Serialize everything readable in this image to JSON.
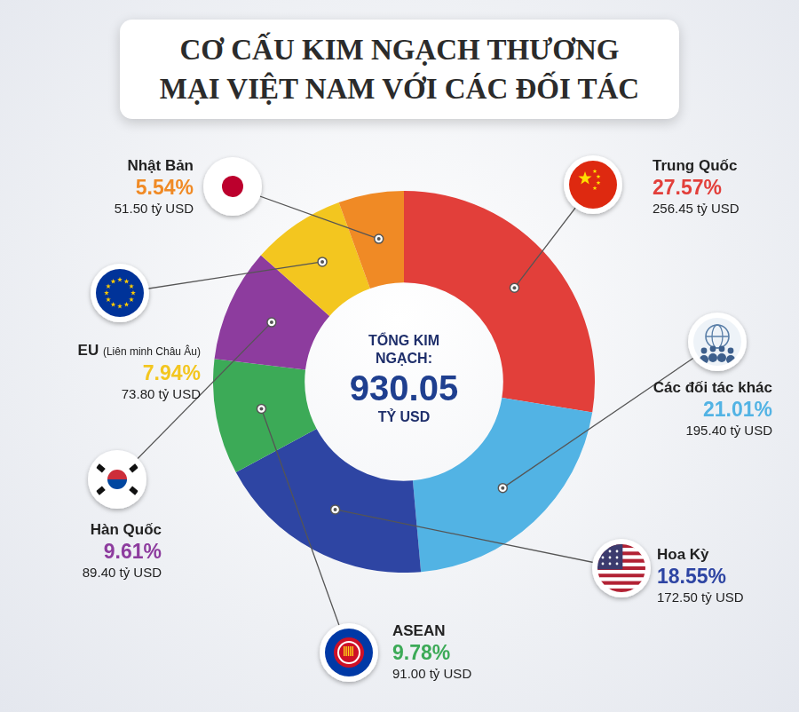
{
  "chart_data": {
    "type": "doughnut",
    "title": "CƠ CẤU KIM NGẠCH THƯƠNG MẠI VIỆT NAM VỚI CÁC ĐỐI TÁC",
    "categories": [
      "Trung Quốc",
      "Các đối tác khác",
      "Hoa Kỳ",
      "ASEAN",
      "Hàn Quốc",
      "EU (Liên minh Châu Âu)",
      "Nhật Bản"
    ],
    "values": [
      27.57,
      21.01,
      18.55,
      9.78,
      9.61,
      7.94,
      5.54
    ],
    "value_labels": [
      "27.57%",
      "21.01%",
      "18.55%",
      "9.78%",
      "9.61%",
      "7.94%",
      "5.54%"
    ],
    "amount_labels": [
      "256.45 tỷ USD",
      "195.40 tỷ USD",
      "172.50 tỷ USD",
      "91.00 tỷ USD",
      "89.40 tỷ USD",
      "73.80 tỷ USD",
      "51.50 tỷ USD"
    ],
    "colors": [
      "#e23f3a",
      "#52b3e4",
      "#2e45a3",
      "#3caa57",
      "#8d3c9e",
      "#f3c61f",
      "#f08a25"
    ],
    "center_label": "TỔNG KIM NGẠCH:",
    "total": 930.05,
    "total_unit": "TỶ USD",
    "data_labels": true
  }
}
